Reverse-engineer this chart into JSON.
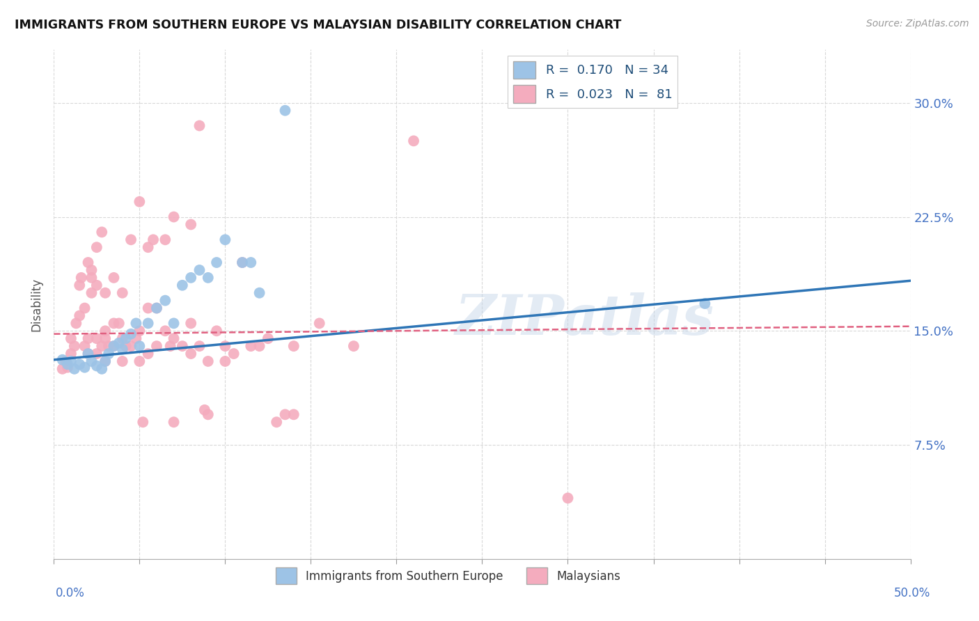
{
  "title": "IMMIGRANTS FROM SOUTHERN EUROPE VS MALAYSIAN DISABILITY CORRELATION CHART",
  "source": "Source: ZipAtlas.com",
  "ylabel": "Disability",
  "xlim": [
    0.0,
    0.5
  ],
  "ylim": [
    0.0,
    0.335
  ],
  "legend_r_blue": "R =  0.170",
  "legend_n_blue": "N = 34",
  "legend_r_pink": "R =  0.023",
  "legend_n_pink": "N =  81",
  "blue_color": "#9DC3E6",
  "pink_color": "#F4ACBE",
  "blue_line_color": "#2E75B6",
  "pink_line_color": "#E06080",
  "blue_scatter": [
    [
      0.005,
      0.131
    ],
    [
      0.008,
      0.128
    ],
    [
      0.01,
      0.13
    ],
    [
      0.012,
      0.125
    ],
    [
      0.015,
      0.128
    ],
    [
      0.018,
      0.126
    ],
    [
      0.02,
      0.135
    ],
    [
      0.022,
      0.13
    ],
    [
      0.025,
      0.127
    ],
    [
      0.028,
      0.125
    ],
    [
      0.03,
      0.13
    ],
    [
      0.032,
      0.135
    ],
    [
      0.035,
      0.14
    ],
    [
      0.038,
      0.142
    ],
    [
      0.04,
      0.138
    ],
    [
      0.042,
      0.145
    ],
    [
      0.045,
      0.148
    ],
    [
      0.048,
      0.155
    ],
    [
      0.05,
      0.14
    ],
    [
      0.055,
      0.155
    ],
    [
      0.06,
      0.165
    ],
    [
      0.065,
      0.17
    ],
    [
      0.07,
      0.155
    ],
    [
      0.075,
      0.18
    ],
    [
      0.08,
      0.185
    ],
    [
      0.085,
      0.19
    ],
    [
      0.09,
      0.185
    ],
    [
      0.095,
      0.195
    ],
    [
      0.1,
      0.21
    ],
    [
      0.11,
      0.195
    ],
    [
      0.115,
      0.195
    ],
    [
      0.12,
      0.175
    ],
    [
      0.135,
      0.295
    ],
    [
      0.38,
      0.168
    ]
  ],
  "pink_scatter": [
    [
      0.005,
      0.125
    ],
    [
      0.007,
      0.13
    ],
    [
      0.008,
      0.126
    ],
    [
      0.01,
      0.135
    ],
    [
      0.01,
      0.145
    ],
    [
      0.012,
      0.14
    ],
    [
      0.013,
      0.155
    ],
    [
      0.015,
      0.16
    ],
    [
      0.015,
      0.18
    ],
    [
      0.016,
      0.185
    ],
    [
      0.018,
      0.14
    ],
    [
      0.018,
      0.165
    ],
    [
      0.02,
      0.135
    ],
    [
      0.02,
      0.145
    ],
    [
      0.02,
      0.195
    ],
    [
      0.022,
      0.19
    ],
    [
      0.022,
      0.185
    ],
    [
      0.022,
      0.175
    ],
    [
      0.025,
      0.135
    ],
    [
      0.025,
      0.145
    ],
    [
      0.025,
      0.18
    ],
    [
      0.025,
      0.205
    ],
    [
      0.028,
      0.14
    ],
    [
      0.028,
      0.215
    ],
    [
      0.03,
      0.13
    ],
    [
      0.03,
      0.145
    ],
    [
      0.03,
      0.15
    ],
    [
      0.03,
      0.175
    ],
    [
      0.032,
      0.14
    ],
    [
      0.035,
      0.14
    ],
    [
      0.035,
      0.155
    ],
    [
      0.035,
      0.185
    ],
    [
      0.038,
      0.155
    ],
    [
      0.04,
      0.13
    ],
    [
      0.04,
      0.145
    ],
    [
      0.04,
      0.175
    ],
    [
      0.042,
      0.14
    ],
    [
      0.045,
      0.14
    ],
    [
      0.045,
      0.21
    ],
    [
      0.048,
      0.145
    ],
    [
      0.05,
      0.13
    ],
    [
      0.05,
      0.15
    ],
    [
      0.05,
      0.235
    ],
    [
      0.052,
      0.09
    ],
    [
      0.055,
      0.135
    ],
    [
      0.055,
      0.165
    ],
    [
      0.055,
      0.205
    ],
    [
      0.058,
      0.21
    ],
    [
      0.06,
      0.14
    ],
    [
      0.06,
      0.165
    ],
    [
      0.065,
      0.15
    ],
    [
      0.065,
      0.21
    ],
    [
      0.068,
      0.14
    ],
    [
      0.07,
      0.09
    ],
    [
      0.07,
      0.145
    ],
    [
      0.07,
      0.225
    ],
    [
      0.075,
      0.14
    ],
    [
      0.08,
      0.135
    ],
    [
      0.08,
      0.155
    ],
    [
      0.08,
      0.22
    ],
    [
      0.085,
      0.14
    ],
    [
      0.085,
      0.285
    ],
    [
      0.088,
      0.098
    ],
    [
      0.09,
      0.095
    ],
    [
      0.09,
      0.13
    ],
    [
      0.095,
      0.15
    ],
    [
      0.1,
      0.13
    ],
    [
      0.1,
      0.14
    ],
    [
      0.105,
      0.135
    ],
    [
      0.11,
      0.195
    ],
    [
      0.115,
      0.14
    ],
    [
      0.12,
      0.14
    ],
    [
      0.125,
      0.145
    ],
    [
      0.13,
      0.09
    ],
    [
      0.135,
      0.095
    ],
    [
      0.14,
      0.095
    ],
    [
      0.14,
      0.14
    ],
    [
      0.155,
      0.155
    ],
    [
      0.175,
      0.14
    ],
    [
      0.21,
      0.275
    ],
    [
      0.3,
      0.04
    ]
  ],
  "watermark": "ZIPatlas",
  "background_color": "#FFFFFF",
  "grid_color": "#D8D8D8"
}
